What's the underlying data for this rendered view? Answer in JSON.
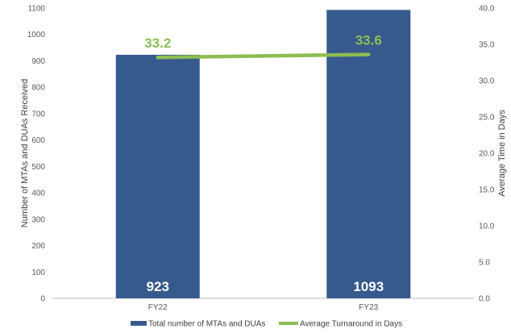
{
  "chart_data": {
    "type": "bar",
    "categories": [
      "FY22",
      "FY23"
    ],
    "series": [
      {
        "name": "Total number of MTAs and DUAs",
        "type": "bar",
        "axis": "left",
        "values": [
          923,
          1093
        ],
        "data_labels": [
          "923",
          "1093"
        ]
      },
      {
        "name": "Average Turnaround in Days",
        "type": "line",
        "axis": "right",
        "values": [
          33.2,
          33.6
        ],
        "data_labels": [
          "33.2",
          "33.6"
        ]
      }
    ],
    "ylabel": "Number of MTAs and DUAs Received",
    "y2label": "Average Time in Days",
    "ylim": [
      0,
      1100
    ],
    "y2lim": [
      0,
      40
    ],
    "y_ticks": [
      "0",
      "100",
      "200",
      "300",
      "400",
      "500",
      "600",
      "700",
      "800",
      "900",
      "1000",
      "1100"
    ],
    "y2_ticks": [
      "0.0",
      "5.0",
      "10.0",
      "15.0",
      "20.0",
      "25.0",
      "30.0",
      "35.0",
      "40.0"
    ],
    "legend_position": "bottom",
    "grid": false,
    "colors": {
      "bar": "#375a8e",
      "line": "#8dbd53",
      "axis": "#bfbfbf"
    }
  }
}
